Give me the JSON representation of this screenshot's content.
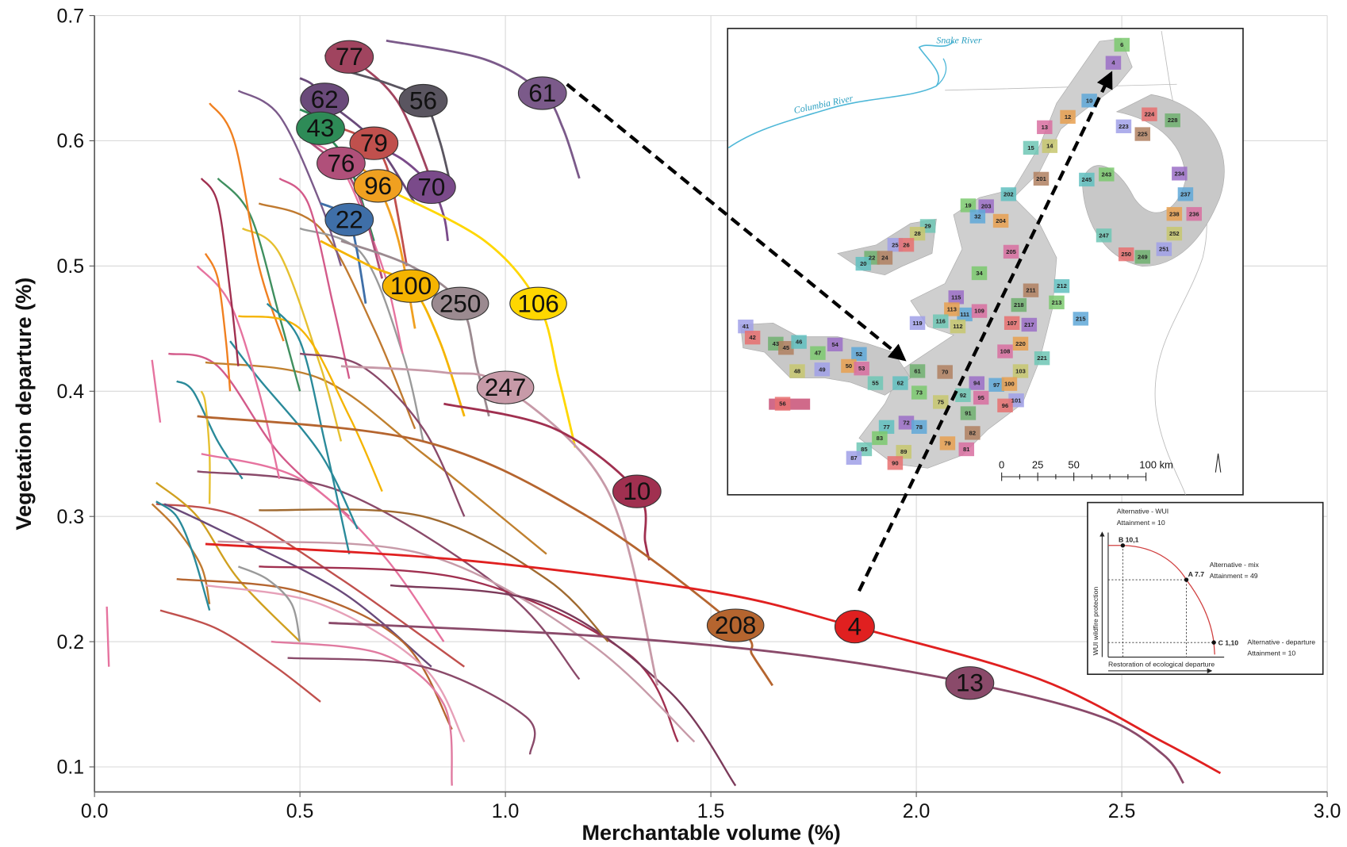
{
  "chart_data": {
    "type": "line",
    "xlabel": "Merchantable volume (%)",
    "ylabel": "Vegetation departure (%)",
    "xlim": [
      0,
      3
    ],
    "ylim": [
      0.08,
      0.7
    ],
    "xticks": [
      {
        "value": 0,
        "label": "0.0"
      },
      0.5,
      {
        "value": 1,
        "label": "1.0"
      },
      1.5,
      {
        "value": 2,
        "label": "2.0"
      },
      2.5,
      {
        "value": 3,
        "label": "3.0"
      }
    ],
    "yticks": [
      0.1,
      0.2,
      0.3,
      0.4,
      0.5,
      0.6,
      0.7
    ],
    "grid": true,
    "series": [
      {
        "color": "#e6739f",
        "x": [
          0.03,
          0.035
        ],
        "values": [
          0.228,
          0.18
        ]
      },
      {
        "color": "#e6739f",
        "x": [
          0.14,
          0.15,
          0.16
        ],
        "values": [
          0.425,
          0.4,
          0.375
        ]
      },
      {
        "color": "#2a8a9a",
        "x": [
          0.2,
          0.24,
          0.3,
          0.36
        ],
        "values": [
          0.408,
          0.4,
          0.36,
          0.33
        ]
      },
      {
        "color": "#e6c030",
        "x": [
          0.26,
          0.27,
          0.28,
          0.28
        ],
        "values": [
          0.4,
          0.39,
          0.35,
          0.31
        ]
      },
      {
        "color": "#d35a8a",
        "x": [
          0.18,
          0.3,
          0.45,
          0.62
        ],
        "values": [
          0.43,
          0.42,
          0.35,
          0.3
        ]
      },
      {
        "color": "#c0802f",
        "x": [
          0.27,
          0.55,
          0.8,
          1.1
        ],
        "values": [
          0.423,
          0.41,
          0.35,
          0.27
        ]
      },
      {
        "color": "#8a4a6a",
        "x": [
          0.25,
          0.6,
          1.0,
          1.18
        ],
        "values": [
          0.336,
          0.32,
          0.24,
          0.17
        ]
      },
      {
        "color": "#c0504d",
        "x": [
          0.15,
          0.35,
          0.6,
          0.9
        ],
        "values": [
          0.31,
          0.3,
          0.25,
          0.18
        ]
      },
      {
        "color": "#d0a020",
        "x": [
          0.15,
          0.25,
          0.35,
          0.5
        ],
        "values": [
          0.327,
          0.3,
          0.25,
          0.2
        ]
      },
      {
        "color": "#c07a30",
        "x": [
          0.14,
          0.2,
          0.26,
          0.28
        ],
        "values": [
          0.31,
          0.29,
          0.26,
          0.23
        ]
      },
      {
        "color": "#2a8a9a",
        "x": [
          0.15,
          0.2,
          0.24,
          0.28
        ],
        "values": [
          0.312,
          0.3,
          0.27,
          0.225
        ]
      },
      {
        "color": "#6a4a7a",
        "x": [
          0.17,
          0.3,
          0.6,
          0.82
        ],
        "values": [
          0.31,
          0.29,
          0.24,
          0.18
        ]
      },
      {
        "color": "#e6739f",
        "x": [
          0.26,
          0.5,
          0.7,
          0.85
        ],
        "values": [
          0.35,
          0.33,
          0.27,
          0.2
        ]
      },
      {
        "color": "#c0504d",
        "x": [
          0.16,
          0.3,
          0.44,
          0.55
        ],
        "values": [
          0.225,
          0.21,
          0.18,
          0.152
        ]
      },
      {
        "color": "#b5652f",
        "x": [
          0.2,
          0.5,
          0.75,
          0.87
        ],
        "values": [
          0.25,
          0.24,
          0.2,
          0.13
        ]
      },
      {
        "color": "#e6a0b8",
        "x": [
          0.27,
          0.55,
          0.8,
          0.9
        ],
        "values": [
          0.245,
          0.23,
          0.18,
          0.12
        ]
      },
      {
        "color": "#e07aa0",
        "x": [
          0.43,
          0.7,
          0.85,
          0.87
        ],
        "values": [
          0.2,
          0.19,
          0.15,
          0.085
        ]
      },
      {
        "color": "#8a4a6a",
        "x": [
          0.47,
          0.8,
          1.05,
          1.06
        ],
        "values": [
          0.187,
          0.18,
          0.14,
          0.11
        ]
      },
      {
        "color": "#a03050",
        "x": [
          0.4,
          0.9,
          1.3,
          1.42
        ],
        "values": [
          0.26,
          0.25,
          0.19,
          0.12
        ]
      },
      {
        "color": "#c79aa8",
        "x": [
          0.3,
          0.8,
          1.2,
          1.46
        ],
        "values": [
          0.28,
          0.27,
          0.2,
          0.12
        ]
      },
      {
        "color": "#7b3a5a",
        "x": [
          0.72,
          1.1,
          1.4,
          1.56
        ],
        "values": [
          0.245,
          0.23,
          0.16,
          0.085
        ]
      },
      {
        "color": "#a06a30",
        "x": [
          0.4,
          0.8,
          1.1,
          1.25
        ],
        "values": [
          0.305,
          0.3,
          0.25,
          0.2
        ]
      },
      {
        "color": "#9a9a9a",
        "x": [
          0.35,
          0.42,
          0.48,
          0.5
        ],
        "values": [
          0.26,
          0.25,
          0.23,
          0.2
        ]
      },
      {
        "color": "#e6c030",
        "x": [
          0.36,
          0.45,
          0.55,
          0.6
        ],
        "values": [
          0.53,
          0.51,
          0.42,
          0.36
        ]
      },
      {
        "color": "#2a8a9a",
        "x": [
          0.33,
          0.4,
          0.55,
          0.64
        ],
        "values": [
          0.44,
          0.41,
          0.35,
          0.29
        ]
      },
      {
        "color": "#3f8f5f",
        "x": [
          0.3,
          0.38,
          0.45,
          0.5
        ],
        "values": [
          0.57,
          0.54,
          0.46,
          0.4
        ]
      },
      {
        "color": "#f08020",
        "x": [
          0.28,
          0.34,
          0.4,
          0.46
        ],
        "values": [
          0.63,
          0.6,
          0.5,
          0.44
        ]
      },
      {
        "color": "#e6739f",
        "x": [
          0.25,
          0.33,
          0.4,
          0.45
        ],
        "values": [
          0.5,
          0.47,
          0.4,
          0.33
        ]
      },
      {
        "color": "#f5b400",
        "x": [
          0.35,
          0.5,
          0.62,
          0.7
        ],
        "values": [
          0.46,
          0.45,
          0.38,
          0.32
        ]
      },
      {
        "color": "#c07a30",
        "x": [
          0.4,
          0.55,
          0.68,
          0.78
        ],
        "values": [
          0.55,
          0.53,
          0.45,
          0.37
        ]
      },
      {
        "color": "#9a9a9a",
        "x": [
          0.5,
          0.65,
          0.75,
          0.8
        ],
        "values": [
          0.53,
          0.51,
          0.43,
          0.36
        ]
      },
      {
        "color": "#7b5a8a",
        "x": [
          0.35,
          0.45,
          0.55,
          0.6
        ],
        "values": [
          0.64,
          0.62,
          0.55,
          0.5
        ]
      },
      {
        "color": "#e6739f",
        "x": [
          0.52,
          0.6,
          0.7,
          0.75
        ],
        "values": [
          0.6,
          0.58,
          0.5,
          0.43
        ]
      },
      {
        "color": "#d35a8a",
        "x": [
          0.45,
          0.52,
          0.58,
          0.62
        ],
        "values": [
          0.57,
          0.55,
          0.47,
          0.41
        ]
      },
      {
        "color": "#2a8a9a",
        "x": [
          0.42,
          0.5,
          0.56,
          0.62
        ],
        "values": [
          0.47,
          0.44,
          0.36,
          0.27
        ]
      },
      {
        "color": "#8a4a6a",
        "x": [
          0.5,
          0.65,
          0.8,
          0.9
        ],
        "values": [
          0.43,
          0.42,
          0.37,
          0.3
        ]
      },
      {
        "color": "#a03050",
        "x": [
          0.26,
          0.3,
          0.33,
          0.35
        ],
        "values": [
          0.57,
          0.55,
          0.48,
          0.42
        ]
      },
      {
        "color": "#f08020",
        "x": [
          0.27,
          0.3,
          0.32,
          0.33
        ],
        "values": [
          0.51,
          0.49,
          0.44,
          0.4
        ]
      },
      {
        "name": "61",
        "color": "#7b5a8a",
        "x": [
          0.71,
          0.95,
          1.09,
          1.14,
          1.18
        ],
        "values": [
          0.68,
          0.665,
          0.638,
          0.61,
          0.57
        ]
      },
      {
        "name": "77",
        "color": "#a0445f",
        "x": [
          0.56,
          0.6,
          0.62,
          0.74,
          0.84
        ],
        "values": [
          0.668,
          0.668,
          0.667,
          0.63,
          0.55
        ]
      },
      {
        "name": "62",
        "color": "#6a4a7a",
        "x": [
          0.5,
          0.53,
          0.56,
          0.68,
          0.78
        ],
        "values": [
          0.65,
          0.645,
          0.633,
          0.6,
          0.55
        ]
      },
      {
        "name": "56",
        "color": "#5a5560",
        "x": [
          0.62,
          0.72,
          0.8,
          0.84,
          0.87
        ],
        "values": [
          0.655,
          0.645,
          0.632,
          0.6,
          0.56
        ]
      },
      {
        "name": "43",
        "color": "#2e8b57",
        "x": [
          0.5,
          0.53,
          0.55,
          0.62,
          0.68
        ],
        "values": [
          0.625,
          0.62,
          0.61,
          0.58,
          0.52
        ]
      },
      {
        "name": "79",
        "color": "#c0504d",
        "x": [
          0.6,
          0.64,
          0.68,
          0.72,
          0.76
        ],
        "values": [
          0.61,
          0.605,
          0.598,
          0.57,
          0.5
        ]
      },
      {
        "name": "76",
        "color": "#b0507a",
        "x": [
          0.52,
          0.56,
          0.6,
          0.65,
          0.7
        ],
        "values": [
          0.6,
          0.59,
          0.582,
          0.55,
          0.49
        ]
      },
      {
        "name": "96",
        "color": "#f0a020",
        "x": [
          0.58,
          0.64,
          0.69,
          0.74,
          0.78
        ],
        "values": [
          0.59,
          0.58,
          0.564,
          0.52,
          0.45
        ]
      },
      {
        "name": "70",
        "color": "#7a4a8a",
        "x": [
          0.66,
          0.75,
          0.82,
          0.85,
          0.86
        ],
        "values": [
          0.6,
          0.585,
          0.563,
          0.54,
          0.52
        ]
      },
      {
        "name": "22",
        "color": "#3f6fa8",
        "x": [
          0.55,
          0.59,
          0.62,
          0.64,
          0.66
        ],
        "values": [
          0.55,
          0.545,
          0.537,
          0.51,
          0.47
        ]
      },
      {
        "name": "100",
        "color": "#f5b400",
        "x": [
          0.55,
          0.67,
          0.77,
          0.84,
          0.9
        ],
        "values": [
          0.52,
          0.5,
          0.484,
          0.44,
          0.38
        ]
      },
      {
        "name": "250",
        "color": "#9b8a90",
        "x": [
          0.6,
          0.77,
          0.89,
          0.93,
          0.96
        ],
        "values": [
          0.52,
          0.5,
          0.47,
          0.42,
          0.38
        ]
      },
      {
        "name": "106",
        "color": "#ffd700",
        "x": [
          0.72,
          0.95,
          1.08,
          1.13,
          1.17
        ],
        "values": [
          0.56,
          0.52,
          0.47,
          0.41,
          0.355
        ]
      },
      {
        "name": "247",
        "color": "#c79aa8",
        "x": [
          0.6,
          0.85,
          1.0,
          1.25,
          1.37
        ],
        "values": [
          0.42,
          0.415,
          0.403,
          0.32,
          0.165
        ]
      },
      {
        "name": "10",
        "color": "#a03050",
        "x": [
          0.85,
          1.12,
          1.32,
          1.34,
          1.35
        ],
        "values": [
          0.39,
          0.37,
          0.32,
          0.28,
          0.265
        ]
      },
      {
        "name": "208",
        "color": "#b5652f",
        "x": [
          0.25,
          0.8,
          1.2,
          1.56,
          1.6,
          1.63,
          1.65
        ],
        "values": [
          0.38,
          0.36,
          0.3,
          0.213,
          0.19,
          0.175,
          0.165
        ]
      },
      {
        "name": "4",
        "color": "#e02020",
        "x": [
          0.27,
          0.9,
          1.5,
          1.85,
          2.3,
          2.6,
          2.74
        ],
        "values": [
          0.278,
          0.265,
          0.24,
          0.212,
          0.17,
          0.12,
          0.095
        ]
      },
      {
        "name": "13",
        "color": "#8a4a6a",
        "x": [
          0.57,
          1.2,
          1.7,
          2.13,
          2.45,
          2.6,
          2.65
        ],
        "values": [
          0.215,
          0.205,
          0.19,
          0.167,
          0.14,
          0.11,
          0.087
        ]
      }
    ]
  },
  "map_inset": {
    "rivers": [
      "Snake River",
      "Columbia River"
    ],
    "scale": [
      "0",
      "25",
      "50",
      "100 km"
    ],
    "unit_labels": [
      "6",
      "4",
      "10",
      "12",
      "13",
      "15",
      "14",
      "223",
      "224",
      "228",
      "225",
      "245",
      "243",
      "234",
      "237",
      "238",
      "236",
      "247",
      "252",
      "251",
      "250",
      "249",
      "201",
      "202",
      "19",
      "203",
      "32",
      "204",
      "205",
      "29",
      "28",
      "25",
      "26",
      "22",
      "24",
      "20",
      "34",
      "115",
      "111",
      "113",
      "109",
      "116",
      "112",
      "119",
      "107",
      "218",
      "211",
      "212",
      "213",
      "217",
      "215",
      "220",
      "108",
      "221",
      "103",
      "41",
      "42",
      "43",
      "45",
      "46",
      "47",
      "54",
      "52",
      "50",
      "53",
      "55",
      "48",
      "49",
      "56",
      "61",
      "70",
      "62",
      "73",
      "94",
      "97",
      "100",
      "95",
      "92",
      "75",
      "101",
      "96",
      "91",
      "82",
      "77",
      "83",
      "72",
      "78",
      "79",
      "81",
      "85",
      "89",
      "87",
      "90"
    ]
  },
  "diagram_inset": {
    "wui": [
      "Alternative - WUI",
      "Attainment = 10"
    ],
    "b": "B 10,1",
    "mix": [
      "Alternative - mix",
      "Attainment = 49"
    ],
    "a": "A 7.7",
    "c": "C 1,10",
    "departure": [
      "Alternative - departure",
      "Attainment = 10"
    ],
    "y_axis": "WUI wildfire protection",
    "x_axis": "Restoration of ecological departure"
  }
}
